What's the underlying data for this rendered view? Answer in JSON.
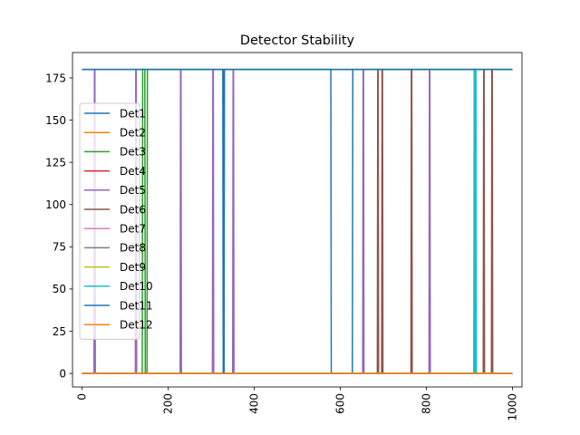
{
  "chart_data": {
    "type": "line",
    "title": "Detector Stability",
    "xlabel": "",
    "ylabel": "",
    "xlim": [
      -22,
      1022
    ],
    "ylim": [
      -8,
      190
    ],
    "x_ticks": [
      0,
      200,
      400,
      600,
      800,
      1000
    ],
    "x_tick_labels": [
      "0",
      "200",
      "400",
      "600",
      "800",
      "1000"
    ],
    "x_tick_rotation": 90,
    "y_ticks": [
      0,
      25,
      50,
      75,
      100,
      125,
      150,
      175
    ],
    "y_tick_labels": [
      "0",
      "25",
      "50",
      "75",
      "100",
      "125",
      "150",
      "175"
    ],
    "grid": false,
    "legend_position": "center-left",
    "series": [
      {
        "name": "Det1",
        "color": "#1f77b4",
        "x": [
          0,
          578,
          579,
          628,
          629,
          1000
        ],
        "y": [
          180,
          180,
          0,
          0,
          180,
          180
        ]
      },
      {
        "name": "Det2",
        "color": "#ff7f0e",
        "x": [
          0,
          1000
        ],
        "y": [
          0,
          0
        ]
      },
      {
        "name": "Det3",
        "color": "#2ca02c",
        "x": [
          0,
          140,
          141,
          146,
          147,
          151,
          152,
          1000
        ],
        "y": [
          0,
          0,
          180,
          180,
          0,
          0,
          180,
          180
        ]
      },
      {
        "name": "Det4",
        "color": "#d62728",
        "x": [
          0,
          1000
        ],
        "y": [
          0,
          0
        ]
      },
      {
        "name": "Det5",
        "color": "#9467bd",
        "x": [
          0,
          28,
          29,
          30,
          31,
          124,
          125,
          126,
          127,
          228,
          229,
          230,
          231,
          303,
          304,
          305,
          306,
          350,
          351,
          352,
          353,
          652,
          653,
          654,
          655,
          806,
          807,
          808,
          809,
          1000
        ],
        "y": [
          0,
          0,
          180,
          180,
          0,
          0,
          180,
          180,
          0,
          0,
          180,
          180,
          0,
          0,
          180,
          180,
          0,
          0,
          180,
          180,
          0,
          0,
          180,
          180,
          0,
          0,
          180,
          180,
          0,
          0
        ]
      },
      {
        "name": "Det6",
        "color": "#8c564b",
        "x": [
          0,
          686,
          687,
          688,
          689,
          696,
          697,
          698,
          699,
          764,
          765,
          766,
          767,
          932,
          933,
          934,
          935,
          951,
          952,
          953,
          954,
          1000
        ],
        "y": [
          0,
          0,
          180,
          180,
          0,
          0,
          180,
          180,
          0,
          0,
          180,
          180,
          0,
          0,
          180,
          180,
          0,
          0,
          180,
          180,
          0,
          0
        ]
      },
      {
        "name": "Det7",
        "color": "#e377c2",
        "x": [
          0,
          1000
        ],
        "y": [
          0,
          0
        ]
      },
      {
        "name": "Det8",
        "color": "#7f7f7f",
        "x": [
          0,
          1000
        ],
        "y": [
          0,
          0
        ]
      },
      {
        "name": "Det9",
        "color": "#bcbd22",
        "x": [
          0,
          1000
        ],
        "y": [
          0,
          0
        ]
      },
      {
        "name": "Det10",
        "color": "#17becf",
        "x": [
          0,
          910,
          911,
          912,
          913,
          914,
          915,
          916,
          917,
          1000
        ],
        "y": [
          0,
          0,
          180,
          0,
          180,
          0,
          180,
          0,
          0,
          0
        ]
      },
      {
        "name": "Det11",
        "color": "#1f77b4",
        "x": [
          0,
          327,
          328,
          329,
          330,
          331,
          332,
          1000
        ],
        "y": [
          180,
          180,
          0,
          180,
          0,
          180,
          180,
          180
        ]
      },
      {
        "name": "Det12",
        "color": "#ff7f0e",
        "x": [
          0,
          1000
        ],
        "y": [
          0,
          0
        ]
      }
    ]
  }
}
